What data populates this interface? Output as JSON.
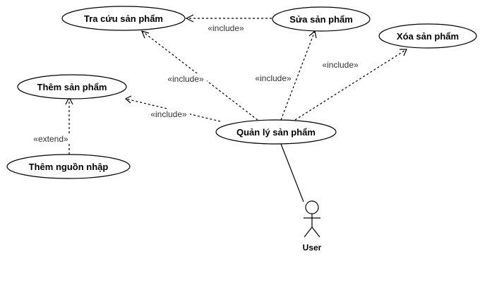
{
  "diagram": {
    "type": "use-case",
    "use_cases": {
      "tra_cuu": "Tra cứu sản phẩm",
      "sua": "Sửa sản phẩm",
      "xoa": "Xóa sản phẩm",
      "them": "Thêm sản phẩm",
      "quan_ly": "Quản lý sản phẩm",
      "them_nguon": "Thêm nguồn nhập"
    },
    "actor": {
      "name": "User"
    },
    "relationships": [
      {
        "from": "sua",
        "to": "tra_cuu",
        "kind": "include",
        "label": "«include»"
      },
      {
        "from": "quan_ly",
        "to": "tra_cuu",
        "kind": "include",
        "label": "«include»"
      },
      {
        "from": "quan_ly",
        "to": "sua",
        "kind": "include",
        "label": "«include»"
      },
      {
        "from": "quan_ly",
        "to": "xoa",
        "kind": "include",
        "label": "«include»"
      },
      {
        "from": "quan_ly",
        "to": "them",
        "kind": "include",
        "label": "«include»"
      },
      {
        "from": "them_nguon",
        "to": "them",
        "kind": "extend",
        "label": "«extend»"
      }
    ],
    "associations": [
      {
        "actor": "User",
        "use_case": "quan_ly"
      }
    ]
  }
}
